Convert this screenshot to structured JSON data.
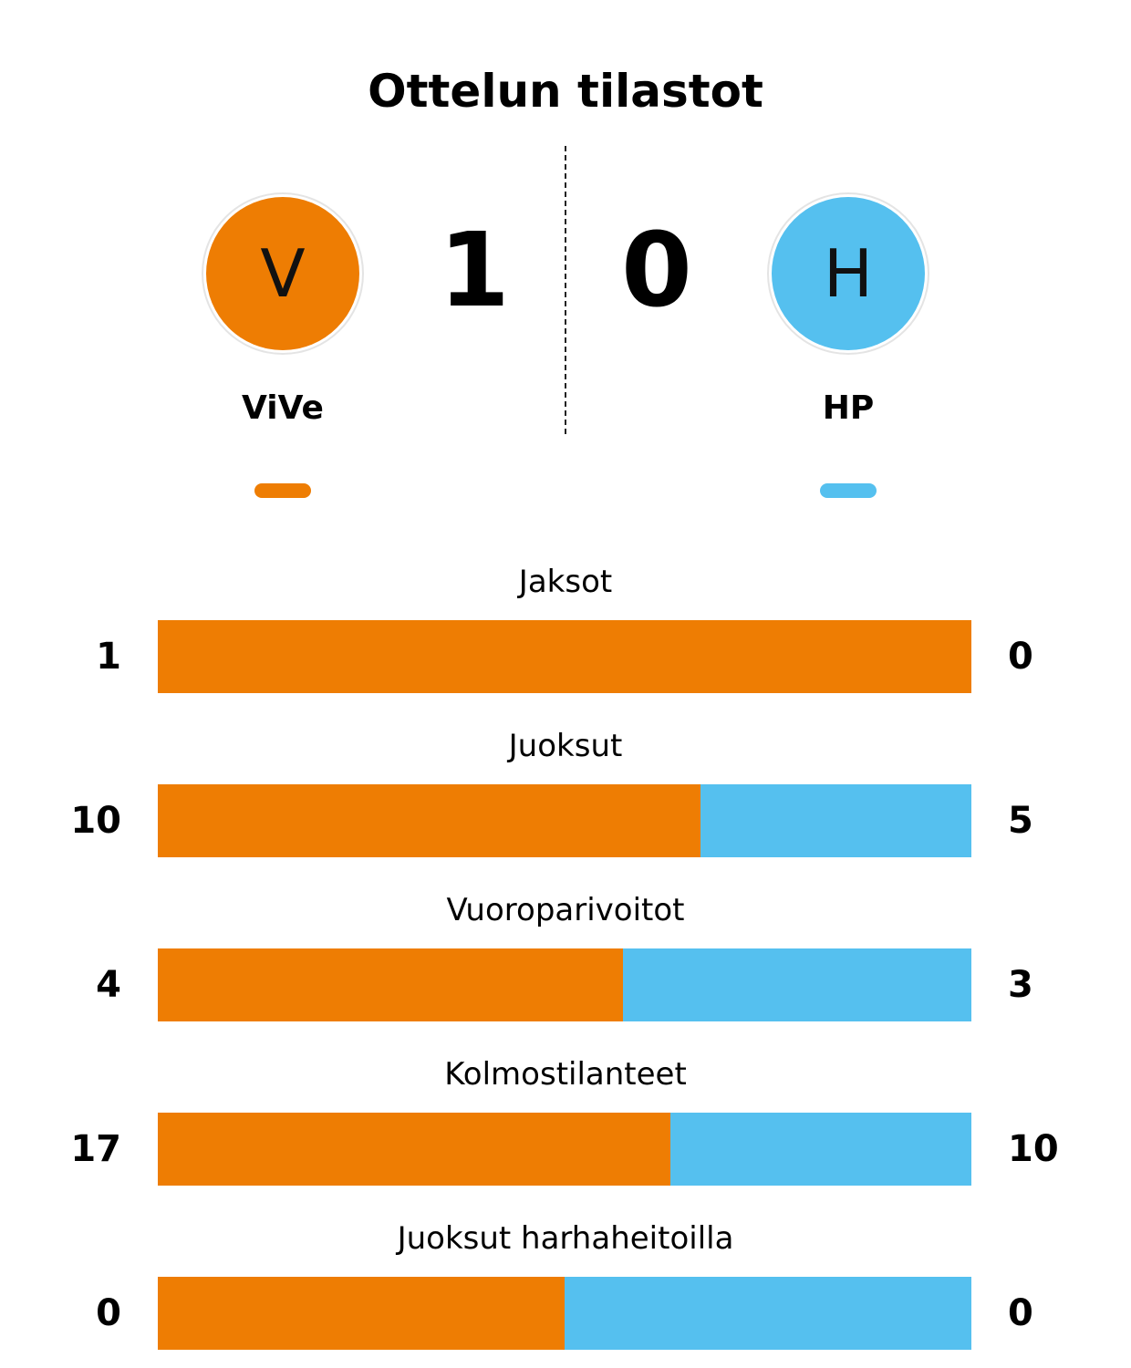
{
  "title": "Ottelun tilastot",
  "colors": {
    "home": "#EE7D03",
    "away": "#55C0EF"
  },
  "home": {
    "name": "ViVe",
    "initial": "V",
    "score": "1"
  },
  "away": {
    "name": "HP",
    "initial": "H",
    "score": "0"
  },
  "chart_data": {
    "type": "bar",
    "orientation": "horizontal-stacked-share",
    "series": [
      {
        "name": "ViVe",
        "values": [
          1,
          10,
          4,
          17,
          0
        ]
      },
      {
        "name": "HP",
        "values": [
          0,
          5,
          3,
          10,
          0
        ]
      }
    ],
    "categories": [
      "Jaksot",
      "Juoksut",
      "Vuoroparivoitot",
      "Kolmostilanteet",
      "Juoksut harhaheitoilla"
    ],
    "title": "Ottelun tilastot",
    "stats": [
      {
        "label": "Jaksot",
        "home": 1,
        "away": 0
      },
      {
        "label": "Juoksut",
        "home": 10,
        "away": 5
      },
      {
        "label": "Vuoroparivoitot",
        "home": 4,
        "away": 3
      },
      {
        "label": "Kolmostilanteet",
        "home": 17,
        "away": 10
      },
      {
        "label": "Juoksut harhaheitoilla",
        "home": 0,
        "away": 0
      }
    ]
  }
}
